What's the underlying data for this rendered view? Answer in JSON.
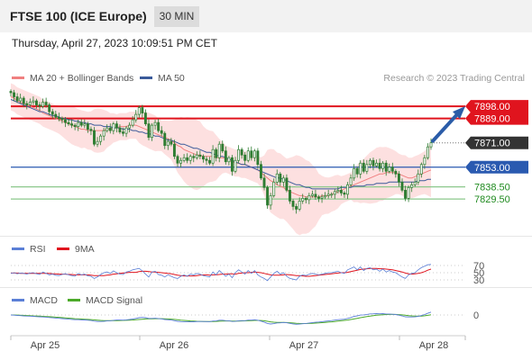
{
  "header": {
    "title": "FTSE 100 (ICE Europe)",
    "timeframe": "30 MIN",
    "datetime": "Thursday, April 27, 2023 10:09:51 PM CET"
  },
  "colors": {
    "red_level": "#e0141e",
    "blue_level": "#2a5ab0",
    "green_level": "#8cc88c",
    "current_price": "#333333",
    "arrow": "#2b5ca8",
    "ma20": "#f08080",
    "ma50": "#3a5a9a",
    "bands": "#fcd6d6",
    "candle": "#2e7d32",
    "rsi": "#5b7fd6",
    "rsi_ma": "#e0141e",
    "macd": "#5b7fd6",
    "macd_signal": "#4caa2a"
  },
  "chart_data": [
    {
      "type": "candlestick",
      "panel": "price",
      "legend": [
        {
          "name": "MA 20 + Bollinger Bands",
          "color": "#f08080"
        },
        {
          "name": "MA 50",
          "color": "#3a5a9a"
        }
      ],
      "watermark": "Research © 2023 Trading Central",
      "ylim": [
        7805,
        7912
      ],
      "x_ticks": [
        "Apr 25",
        "Apr 26",
        "Apr 27",
        "Apr 28"
      ],
      "levels": [
        {
          "label": "7898.00",
          "value": 7898.0,
          "style": "red"
        },
        {
          "label": "7889.00",
          "value": 7889.0,
          "style": "red"
        },
        {
          "label": "7871.00",
          "value": 7871.0,
          "style": "current"
        },
        {
          "label": "7853.00",
          "value": 7853.0,
          "style": "blue"
        },
        {
          "label": "7838.50",
          "value": 7838.5,
          "style": "green"
        },
        {
          "label": "7829.50",
          "value": 7829.5,
          "style": "green"
        }
      ],
      "closes": [
        7908,
        7905,
        7902,
        7904,
        7900,
        7899,
        7901,
        7902,
        7899,
        7898,
        7901,
        7899,
        7894,
        7892,
        7890,
        7889,
        7888,
        7886,
        7885,
        7884,
        7883,
        7886,
        7884,
        7885,
        7881,
        7880,
        7870,
        7872,
        7876,
        7880,
        7882,
        7880,
        7885,
        7882,
        7879,
        7878,
        7882,
        7884,
        7888,
        7892,
        7897,
        7893,
        7885,
        7875,
        7884,
        7886,
        7880,
        7878,
        7869,
        7872,
        7870,
        7861,
        7856,
        7858,
        7860,
        7858,
        7861,
        7860,
        7862,
        7861,
        7859,
        7858,
        7856,
        7866,
        7860,
        7870,
        7865,
        7857,
        7860,
        7850,
        7858,
        7866,
        7862,
        7858,
        7865,
        7860,
        7865,
        7855,
        7845,
        7838,
        7825,
        7832,
        7842,
        7848,
        7842,
        7845,
        7836,
        7828,
        7824,
        7822,
        7828,
        7830,
        7829,
        7832,
        7833,
        7831,
        7830,
        7831,
        7832,
        7833,
        7833,
        7835,
        7836,
        7834,
        7833,
        7840,
        7845,
        7852,
        7848,
        7856,
        7850,
        7855,
        7858,
        7854,
        7856,
        7852,
        7856,
        7850,
        7853,
        7850,
        7848,
        7842,
        7836,
        7830,
        7838,
        7840,
        7842,
        7848,
        7855,
        7860,
        7868,
        7871
      ],
      "ma20": [
        7905,
        7904,
        7902,
        7901,
        7900,
        7899,
        7898,
        7897,
        7896,
        7895,
        7893,
        7892,
        7891,
        7890,
        7889,
        7888,
        7887,
        7886,
        7885,
        7884,
        7883,
        7882,
        7881,
        7881,
        7880,
        7880,
        7880,
        7880,
        7880,
        7880,
        7881,
        7881,
        7882,
        7882,
        7883,
        7883,
        7883,
        7884,
        7884,
        7884,
        7883,
        7882,
        7881,
        7880,
        7879,
        7878,
        7877,
        7876,
        7875,
        7874,
        7873,
        7871,
        7869,
        7868,
        7866,
        7865,
        7864,
        7863,
        7862,
        7862,
        7861,
        7861,
        7861,
        7861,
        7860,
        7860,
        7860,
        7859,
        7858,
        7857,
        7856,
        7856,
        7855,
        7855,
        7854,
        7853,
        7852,
        7851,
        7849,
        7847,
        7845,
        7843,
        7842,
        7840,
        7839,
        7838,
        7836,
        7835,
        7834,
        7833,
        7832,
        7832,
        7831,
        7831,
        7831,
        7831,
        7831,
        7832,
        7832,
        7832,
        7833,
        7834,
        7835,
        7836,
        7837,
        7838,
        7839,
        7840,
        7841,
        7842,
        7843,
        7844,
        7845,
        7846,
        7847,
        7848,
        7848,
        7849,
        7849,
        7849,
        7849,
        7848,
        7847,
        7846,
        7845,
        7845,
        7846,
        7847,
        7848,
        7849,
        7850,
        7851
      ],
      "ma50": [
        7903,
        7902,
        7901,
        7900,
        7899,
        7898,
        7897,
        7896,
        7895,
        7894,
        7894,
        7893,
        7892,
        7891,
        7891,
        7890,
        7889,
        7889,
        7888,
        7888,
        7887,
        7887,
        7886,
        7886,
        7885,
        7885,
        7884,
        7884,
        7884,
        7883,
        7883,
        7883,
        7882,
        7882,
        7882,
        7881,
        7881,
        7881,
        7880,
        7880,
        7879,
        7879,
        7878,
        7878,
        7877,
        7876,
        7876,
        7875,
        7874,
        7873,
        7873,
        7872,
        7871,
        7870,
        7870,
        7869,
        7868,
        7867,
        7867,
        7866,
        7865,
        7864,
        7864,
        7863,
        7862,
        7861,
        7861,
        7860,
        7859,
        7858,
        7857,
        7856,
        7855,
        7855,
        7854,
        7853,
        7852,
        7851,
        7850,
        7849,
        7848,
        7847,
        7846,
        7845,
        7845,
        7844,
        7843,
        7842,
        7841,
        7840,
        7840,
        7839,
        7838,
        7838,
        7837,
        7837,
        7837,
        7837,
        7837,
        7837,
        7837,
        7837,
        7837,
        7838,
        7838,
        7838,
        7838,
        7839,
        7839,
        7839,
        7839,
        7840,
        7840,
        7840,
        7841,
        7841,
        7841,
        7841,
        7842,
        7842,
        7842,
        7842,
        7842,
        7842,
        7842,
        7842,
        7842,
        7843,
        7843,
        7843,
        7844,
        7844
      ]
    },
    {
      "type": "line",
      "panel": "rsi",
      "legend": [
        {
          "name": "RSI",
          "color": "#5b7fd6"
        },
        {
          "name": "9MA",
          "color": "#e0141e"
        }
      ],
      "y_ticks": [
        "70",
        "50",
        "30"
      ],
      "ylim": [
        20,
        80
      ],
      "series": [
        {
          "name": "RSI",
          "values": [
            48,
            50,
            47,
            49,
            48,
            46,
            49,
            50,
            47,
            45,
            52,
            48,
            44,
            46,
            43,
            42,
            45,
            47,
            44,
            42,
            40,
            48,
            44,
            46,
            41,
            40,
            34,
            38,
            45,
            50,
            52,
            48,
            55,
            50,
            46,
            45,
            52,
            54,
            58,
            60,
            62,
            55,
            46,
            38,
            52,
            54,
            45,
            43,
            38,
            44,
            40,
            36,
            34,
            40,
            44,
            40,
            46,
            44,
            48,
            46,
            42,
            40,
            38,
            52,
            44,
            56,
            48,
            40,
            46,
            36,
            50,
            58,
            52,
            46,
            56,
            48,
            56,
            44,
            38,
            34,
            28,
            38,
            48,
            54,
            46,
            50,
            40,
            34,
            32,
            30,
            40,
            44,
            42,
            46,
            48,
            46,
            44,
            46,
            48,
            50,
            50,
            52,
            54,
            50,
            48,
            58,
            62,
            66,
            58,
            66,
            56,
            62,
            64,
            58,
            60,
            54,
            60,
            52,
            56,
            52,
            50,
            44,
            38,
            34,
            44,
            48,
            50,
            58,
            64,
            68,
            72,
            73
          ]
        },
        {
          "name": "9MA",
          "values": [
            49,
            49,
            49,
            48,
            48,
            48,
            48,
            48,
            48,
            48,
            48,
            48,
            48,
            47,
            47,
            46,
            46,
            46,
            45,
            45,
            44,
            44,
            44,
            44,
            44,
            43,
            42,
            42,
            42,
            42,
            43,
            44,
            46,
            47,
            48,
            49,
            50,
            51,
            51,
            51,
            53,
            54,
            54,
            53,
            52,
            52,
            51,
            50,
            49,
            48,
            47,
            45,
            43,
            42,
            41,
            41,
            41,
            41,
            42,
            43,
            44,
            44,
            43,
            44,
            44,
            45,
            46,
            46,
            47,
            47,
            46,
            48,
            49,
            50,
            50,
            51,
            52,
            51,
            50,
            48,
            46,
            44,
            43,
            43,
            43,
            44,
            45,
            44,
            43,
            42,
            42,
            41,
            40,
            40,
            41,
            42,
            43,
            44,
            45,
            46,
            47,
            48,
            49,
            50,
            50,
            51,
            53,
            55,
            57,
            59,
            60,
            61,
            62,
            62,
            62,
            61,
            61,
            60,
            59,
            58,
            56,
            54,
            52,
            49,
            47,
            46,
            47,
            48,
            50,
            53,
            57,
            60
          ]
        }
      ]
    },
    {
      "type": "line",
      "panel": "macd",
      "legend": [
        {
          "name": "MACD",
          "color": "#5b7fd6"
        },
        {
          "name": "MACD Signal",
          "color": "#4caa2a"
        }
      ],
      "y_ticks": [
        "0"
      ],
      "ylim": [
        -22,
        12
      ],
      "series": [
        {
          "name": "MACD",
          "values": [
            0,
            -0.2,
            -0.5,
            -0.7,
            -1,
            -1.2,
            -1.3,
            -1.5,
            -1.8,
            -2,
            -2.2,
            -2.4,
            -2.8,
            -3.1,
            -3.4,
            -3.7,
            -4,
            -4.3,
            -4.6,
            -4.9,
            -5.2,
            -5.2,
            -5.4,
            -5.5,
            -5.8,
            -6.1,
            -6.8,
            -7.2,
            -7.2,
            -7,
            -6.6,
            -6.4,
            -5.9,
            -5.6,
            -5.6,
            -5.7,
            -5.4,
            -5,
            -4.5,
            -3.8,
            -3,
            -2.7,
            -3,
            -3.8,
            -3.8,
            -3.6,
            -3.9,
            -4.3,
            -5,
            -5.3,
            -5.6,
            -6.3,
            -7,
            -7.3,
            -7.4,
            -7.6,
            -7.5,
            -7.5,
            -7.3,
            -7.2,
            -7.2,
            -7.3,
            -7.4,
            -6.7,
            -6.6,
            -5.8,
            -5.8,
            -6.3,
            -6.4,
            -7.2,
            -7.1,
            -6.4,
            -6.2,
            -6.3,
            -5.7,
            -5.7,
            -5.3,
            -5.8,
            -6.8,
            -7.9,
            -9.4,
            -10,
            -9.6,
            -8.8,
            -8.7,
            -8.3,
            -8.6,
            -9.3,
            -9.9,
            -10.3,
            -10.1,
            -9.7,
            -9.4,
            -8.9,
            -8.4,
            -8.1,
            -7.8,
            -7.4,
            -7,
            -6.6,
            -6.2,
            -5.7,
            -5.2,
            -4.9,
            -4.7,
            -3.8,
            -2.8,
            -1.6,
            -1,
            -0.1,
            0.1,
            0.6,
            1.2,
            1.3,
            1.5,
            1.3,
            1.5,
            1.1,
            1.1,
            0.8,
            0.5,
            -0.2,
            -1,
            -2,
            -2.2,
            -2.2,
            -2.1,
            -1.5,
            -0.6,
            0.5,
            1.9,
            3.2
          ]
        },
        {
          "name": "MACD Signal",
          "values": [
            0,
            0,
            -0.1,
            -0.3,
            -0.4,
            -0.6,
            -0.8,
            -1,
            -1.1,
            -1.3,
            -1.5,
            -1.7,
            -1.9,
            -2.1,
            -2.4,
            -2.6,
            -2.9,
            -3.2,
            -3.5,
            -3.8,
            -4.1,
            -4.3,
            -4.5,
            -4.7,
            -4.9,
            -5.1,
            -5.4,
            -5.7,
            -6,
            -6.2,
            -6.3,
            -6.3,
            -6.3,
            -6.2,
            -6.1,
            -6,
            -5.9,
            -5.8,
            -5.6,
            -5.3,
            -5,
            -4.7,
            -4.4,
            -4.3,
            -4.2,
            -4.1,
            -4.1,
            -4.1,
            -4.2,
            -4.4,
            -4.6,
            -4.9,
            -5.3,
            -5.7,
            -6,
            -6.3,
            -6.6,
            -6.8,
            -7,
            -7.1,
            -7.2,
            -7.2,
            -7.3,
            -7.2,
            -7.1,
            -6.9,
            -6.7,
            -6.6,
            -6.6,
            -6.7,
            -6.8,
            -6.7,
            -6.6,
            -6.5,
            -6.4,
            -6.2,
            -6,
            -6,
            -6.1,
            -6.4,
            -7,
            -7.6,
            -8,
            -8.2,
            -8.3,
            -8.3,
            -8.4,
            -8.6,
            -8.9,
            -9.2,
            -9.4,
            -9.5,
            -9.5,
            -9.4,
            -9.2,
            -9,
            -8.8,
            -8.5,
            -8.2,
            -7.9,
            -7.6,
            -7.2,
            -6.8,
            -6.4,
            -6,
            -5.6,
            -5,
            -4.4,
            -3.7,
            -3,
            -2.4,
            -1.8,
            -1.2,
            -0.7,
            -0.3,
            0,
            0.3,
            0.5,
            0.6,
            0.6,
            0.6,
            0.4,
            0.1,
            -0.3,
            -0.7,
            -1,
            -1.2,
            -1.3,
            -1.2,
            -0.9,
            -0.4,
            0.3
          ]
        }
      ]
    }
  ]
}
